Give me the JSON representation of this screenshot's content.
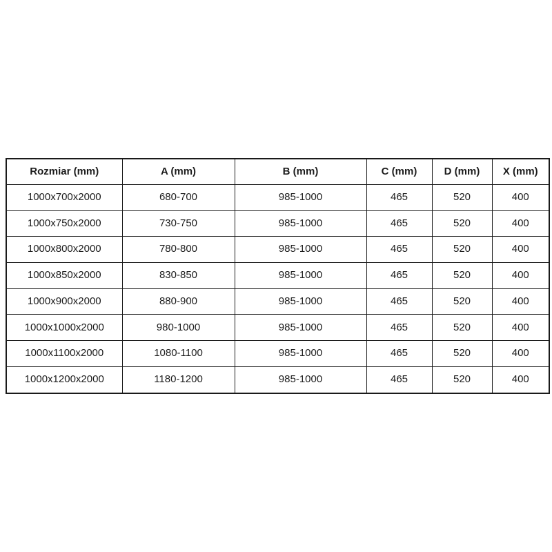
{
  "table": {
    "name": "shower-enclosure-dimensions",
    "headers": [
      "Rozmiar (mm)",
      "A (mm)",
      "B (mm)",
      "C (mm)",
      "D (mm)",
      "X (mm)"
    ],
    "rows": [
      [
        "1000x700x2000",
        "680-700",
        "985-1000",
        "465",
        "520",
        "400"
      ],
      [
        "1000x750x2000",
        "730-750",
        "985-1000",
        "465",
        "520",
        "400"
      ],
      [
        "1000x800x2000",
        "780-800",
        "985-1000",
        "465",
        "520",
        "400"
      ],
      [
        "1000x850x2000",
        "830-850",
        "985-1000",
        "465",
        "520",
        "400"
      ],
      [
        "1000x900x2000",
        "880-900",
        "985-1000",
        "465",
        "520",
        "400"
      ],
      [
        "1000x1000x2000",
        "980-1000",
        "985-1000",
        "465",
        "520",
        "400"
      ],
      [
        "1000x1100x2000",
        "1080-1100",
        "985-1000",
        "465",
        "520",
        "400"
      ],
      [
        "1000x1200x2000",
        "1180-1200",
        "985-1000",
        "465",
        "520",
        "400"
      ]
    ],
    "colors": {
      "border": "#1a1a1a",
      "background": "#ffffff",
      "text": "#1c1c1c"
    }
  }
}
